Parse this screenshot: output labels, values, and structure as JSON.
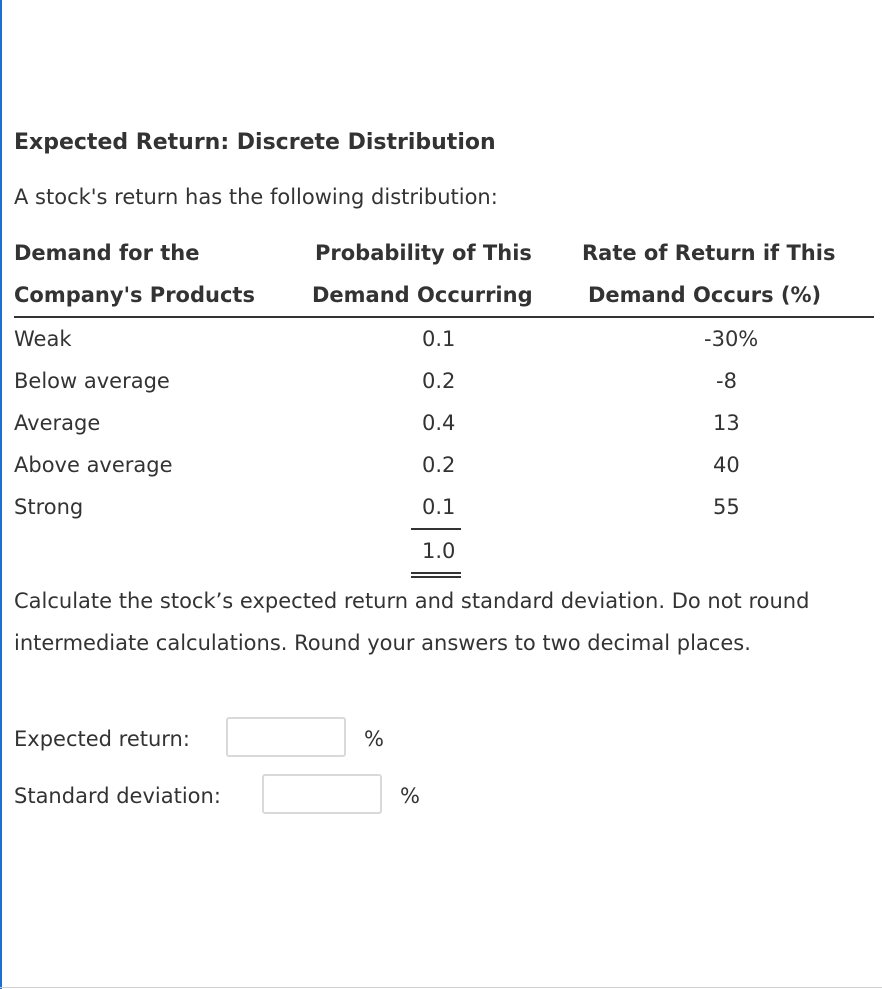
{
  "problem": {
    "title": "Expected Return: Discrete Distribution",
    "intro": "A stock's return has the following distribution:",
    "table": {
      "headers": {
        "demand": [
          "Demand for the",
          "Company's Products"
        ],
        "probability": [
          "Probability of This",
          "Demand Occurring"
        ],
        "return": [
          "Rate of Return if This",
          "Demand Occurs (%)"
        ]
      },
      "rows": [
        {
          "demand": "Weak",
          "probability": "0.1",
          "return": "-30%"
        },
        {
          "demand": "Below average",
          "probability": "0.2",
          "return": "-8"
        },
        {
          "demand": "Average",
          "probability": "0.4",
          "return": "13"
        },
        {
          "demand": "Above average",
          "probability": "0.2",
          "return": "40"
        },
        {
          "demand": "Strong",
          "probability": "0.1",
          "return": "55"
        }
      ],
      "probability_total": "1.0"
    },
    "question": "Calculate the stock’s expected return and standard deviation. Do not round intermediate calculations. Round your answers to two decimal places.",
    "fields": {
      "expected_return": {
        "label": "Expected return:",
        "value": "",
        "unit": "%"
      },
      "std_dev": {
        "label": "Standard deviation:",
        "value": "",
        "unit": "%"
      }
    }
  }
}
